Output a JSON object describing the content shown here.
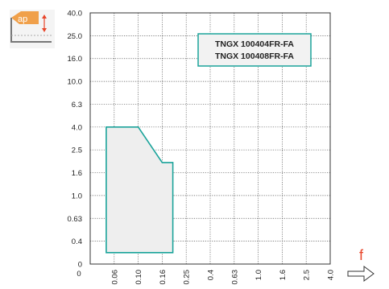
{
  "chart_data": {
    "type": "area",
    "title": "",
    "xlabel": "f",
    "ylabel": "ap",
    "icon_label": "ap",
    "x_tick_labels": [
      "0",
      "0.06",
      "0.10",
      "0.16",
      "0.25",
      "0.4",
      "0.63",
      "1.0",
      "1.6",
      "2.5",
      "4.0"
    ],
    "y_tick_labels": [
      "40.0",
      "25.0",
      "16.0",
      "10.0",
      "6.3",
      "4.0",
      "2.5",
      "1.6",
      "1.0",
      "0.63",
      "0.4",
      "0"
    ],
    "grid": true,
    "legend_position": "top-right",
    "legend": [
      "TNGX 100404FR-FA",
      "TNGX 100408FR-FA"
    ],
    "series": [
      {
        "name": "TNGX 100404FR-FA / TNGX 100408FR-FA",
        "points": [
          {
            "f": 0.04,
            "ap": 0.2
          },
          {
            "f": 0.04,
            "ap": 4.0
          },
          {
            "f": 0.1,
            "ap": 4.0
          },
          {
            "f": 0.16,
            "ap": 2.0
          },
          {
            "f": 0.2,
            "ap": 2.0
          },
          {
            "f": 0.2,
            "ap": 0.2
          }
        ]
      }
    ],
    "colors": {
      "outline": "#1aa39a",
      "fill": "#eeeeee",
      "icon": "#f0a04a",
      "f_label": "#e8452a"
    }
  }
}
